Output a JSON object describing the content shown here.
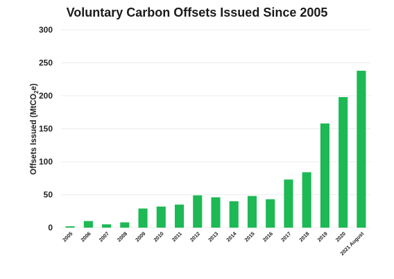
{
  "chart_data": {
    "type": "bar",
    "title": "Voluntary Carbon Offsets Issued Since 2005",
    "xlabel": "",
    "ylabel": "Offsets Issued (MtCO",
    "ylabel_sub": "2",
    "ylabel_suffix": "e)",
    "ylim": [
      0,
      300
    ],
    "yticks": [
      0,
      50,
      100,
      150,
      200,
      250,
      300
    ],
    "grid": true,
    "bar_color": "#1db954",
    "categories": [
      "2005",
      "2006",
      "2007",
      "2008",
      "2009",
      "2010",
      "2011",
      "2012",
      "2013",
      "2014",
      "2015",
      "2016",
      "2017",
      "2018",
      "2019",
      "2020",
      "2021 August"
    ],
    "values": [
      2,
      10,
      5,
      8,
      29,
      32,
      35,
      49,
      46,
      40,
      48,
      43,
      73,
      84,
      158,
      198,
      238
    ]
  }
}
